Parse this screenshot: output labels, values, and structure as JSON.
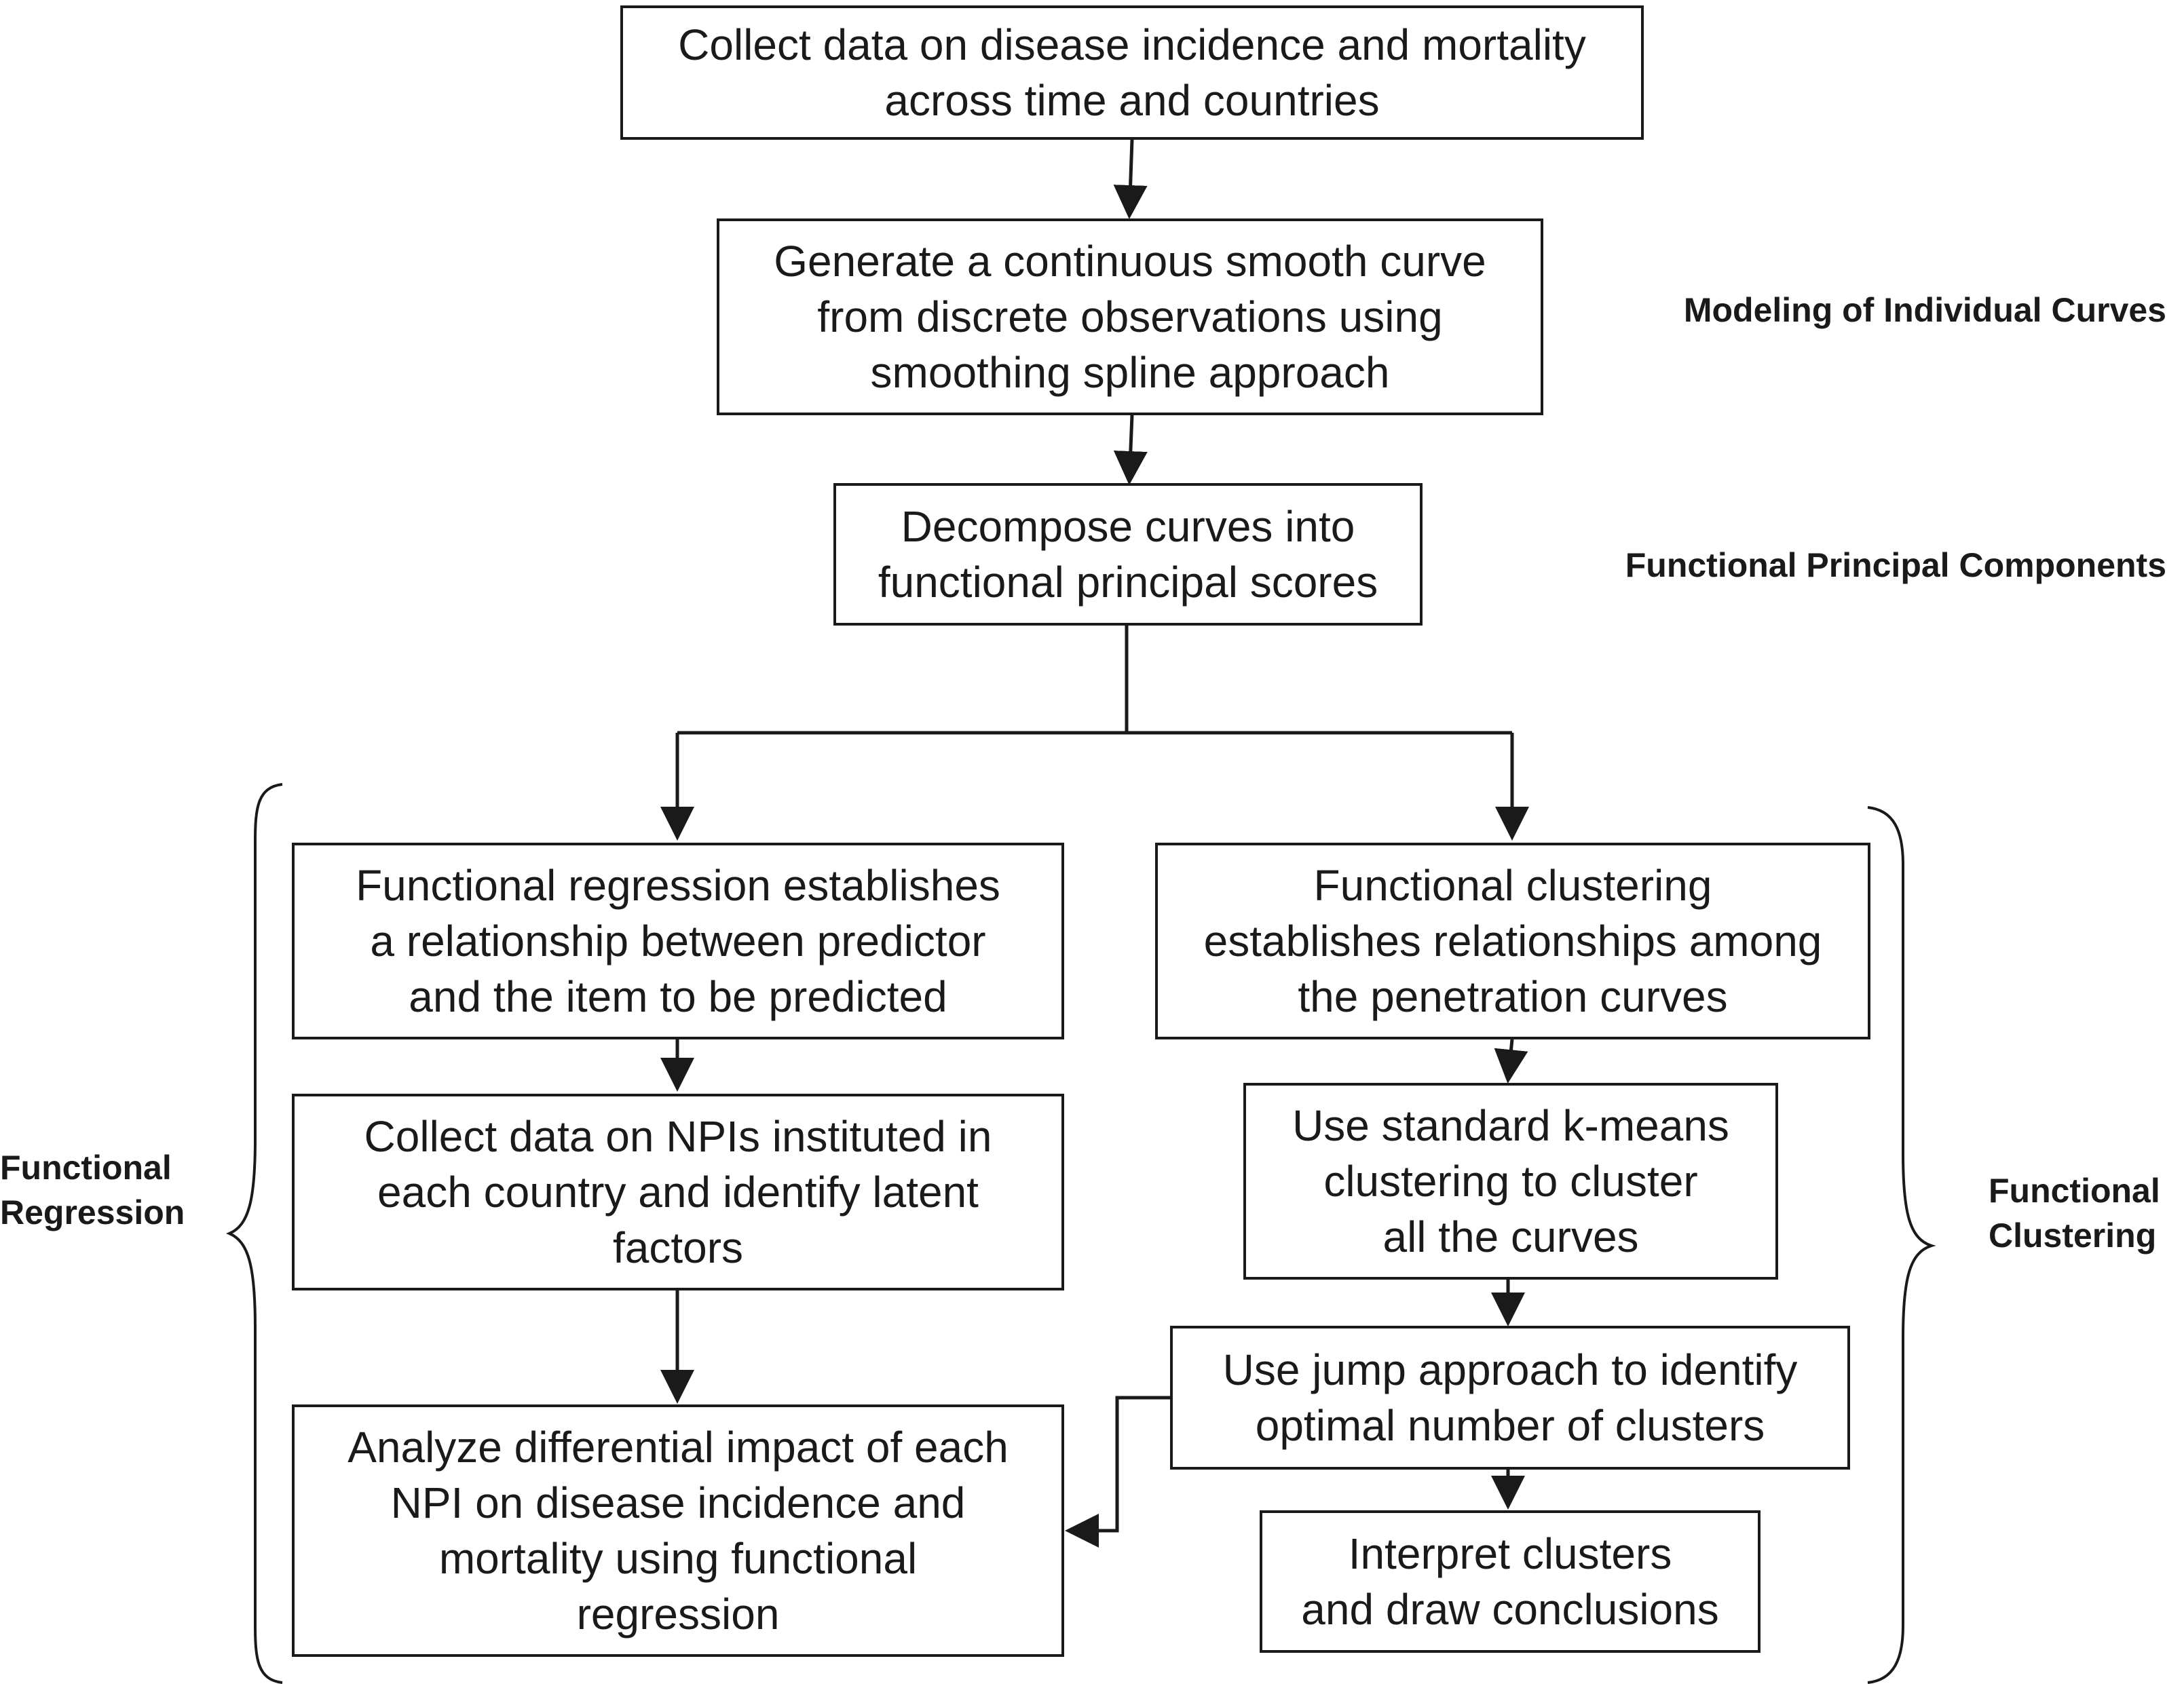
{
  "steps": {
    "collect_data": "Collect data on disease incidence and mortality\nacross time and countries",
    "smooth_curve": "Generate a continuous smooth curve\nfrom discrete observations using\nsmoothing spline approach",
    "decompose": "Decompose curves into\nfunctional principal scores",
    "functional_regression": "Functional regression establishes\na relationship between predictor\nand the item to be predicted",
    "collect_npi": "Collect data on NPIs instituted in\neach country and identify latent\nfactors",
    "analyze_impact": "Analyze differential impact of each\nNPI on disease incidence and\nmortality using functional\nregression",
    "functional_clustering": "Functional clustering\nestablishes relationships among\nthe penetration curves",
    "kmeans": "Use standard k-means\nclustering to cluster\nall the curves",
    "jump_approach": "Use jump approach to identify\noptimal number of clusters",
    "interpret": "Interpret clusters\nand draw conclusions"
  },
  "labels": {
    "modeling": "Modeling of Individual Curves",
    "fpc": "Functional Principal Components",
    "regression": "Functional\nRegression",
    "clustering": "Functional\nClustering"
  },
  "colors": {
    "stroke": "#1a1a1a",
    "background": "#ffffff"
  }
}
